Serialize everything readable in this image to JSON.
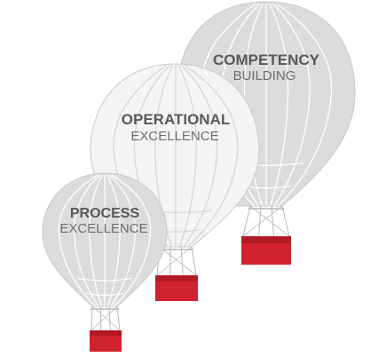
{
  "colors": {
    "balloon_dark": "#dcdcdc",
    "balloon_light": "#f4f4f4",
    "balloon_outline": "#c9c9c9",
    "gore_line": "#ffffff",
    "gore_line_dark": "#d6d6d6",
    "basket": "#d0222e",
    "basket_top": "#b11a25",
    "rope": "#b7b7b7",
    "text_bold": "#58595b",
    "text_light": "#6d6e71"
  },
  "balloons": [
    {
      "id": "competency",
      "line1": "COMPETENCY",
      "line2": "BUILDING"
    },
    {
      "id": "operational",
      "line1": "OPERATIONAL",
      "line2": "EXCELLENCE"
    },
    {
      "id": "process",
      "line1": "PROCESS",
      "line2": "EXCELLENCE"
    }
  ]
}
